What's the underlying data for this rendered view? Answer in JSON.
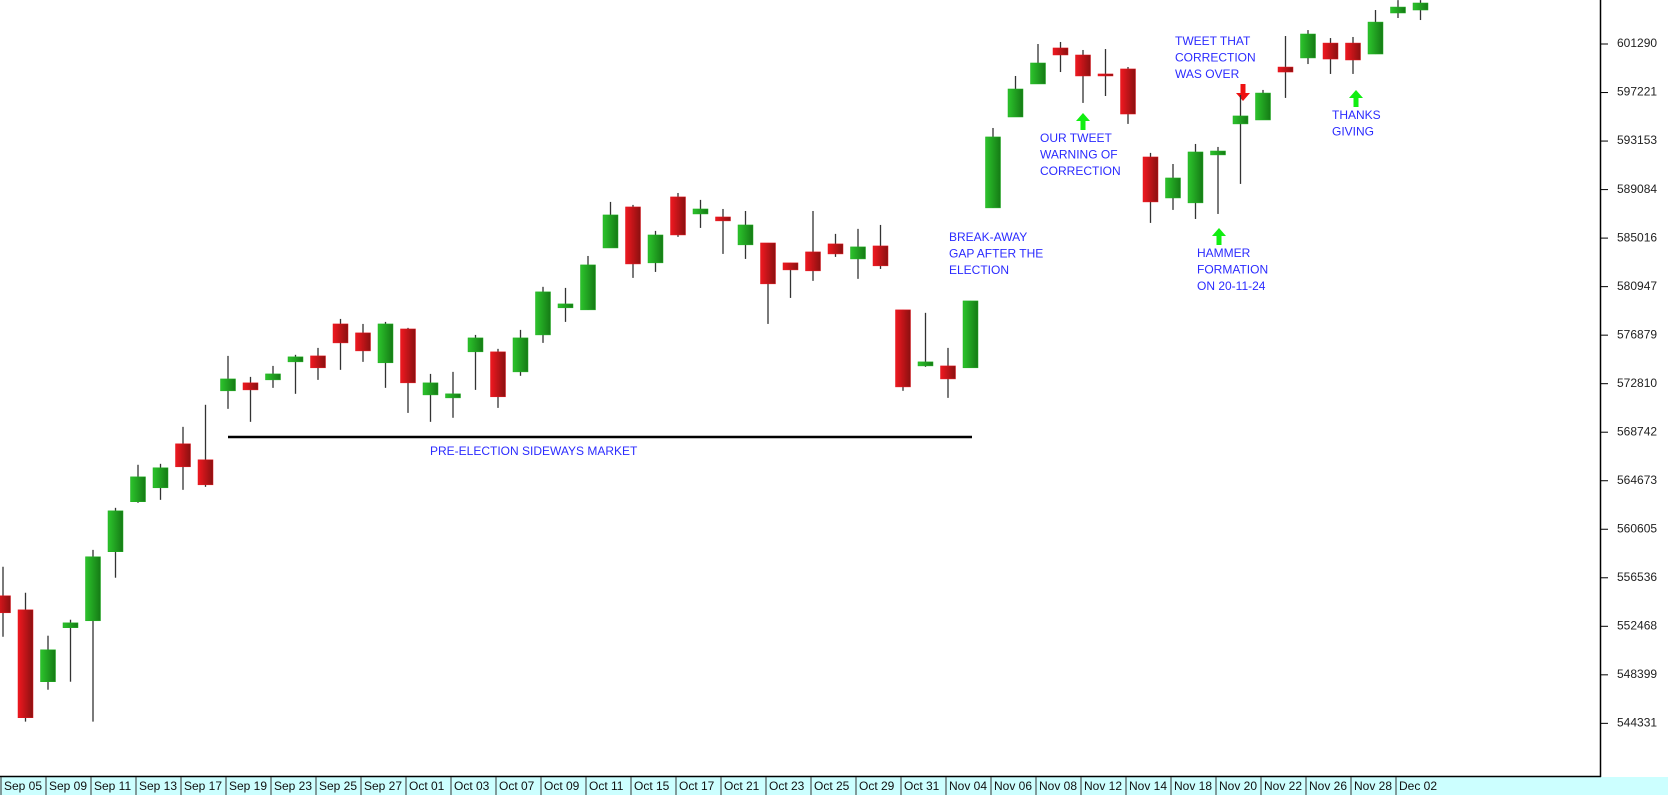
{
  "chart_data": {
    "type": "candlestick",
    "up_color": "#1fae1f",
    "down_color": "#e0141c",
    "wick_color": "#333333",
    "categories": [
      "Sep 05",
      null,
      "Sep 09",
      null,
      "Sep 11",
      null,
      "Sep 13",
      null,
      "Sep 17",
      null,
      "Sep 19",
      null,
      "Sep 23",
      null,
      "Sep 25",
      null,
      "Sep 27",
      null,
      "Oct 01",
      null,
      "Oct 03",
      null,
      "Oct 07",
      null,
      "Oct 09",
      null,
      "Oct 11",
      null,
      "Oct 15",
      null,
      "Oct 17",
      null,
      "Oct 21",
      null,
      "Oct 23",
      null,
      "Oct 25",
      null,
      "Oct 29",
      null,
      "Oct 31",
      null,
      "Nov 04",
      null,
      "Nov 06",
      null,
      "Nov 08",
      null,
      "Nov 12",
      null,
      "Nov 14",
      null,
      "Nov 18",
      null,
      "Nov 20",
      null,
      "Nov 22",
      null,
      "Nov 26",
      null,
      "Nov 28",
      null,
      "Dec 02",
      null
    ],
    "open": [
      555030,
      553850,
      547820,
      552350,
      552930,
      558720,
      562910,
      564080,
      567770,
      566430,
      572210,
      572880,
      573130,
      574640,
      575140,
      577820,
      577070,
      574560,
      577400,
      571870,
      571620,
      575480,
      575480,
      573800,
      576900,
      579170,
      579000,
      584190,
      587630,
      582940,
      588470,
      587040,
      586790,
      584450,
      584610,
      582940,
      583860,
      584530,
      583270,
      584360,
      579000,
      574300,
      574300,
      574140,
      587550,
      595170,
      597940,
      600960,
      600370,
      598780,
      599200,
      591820,
      588380,
      587970,
      591990,
      594590,
      594920,
      599360,
      600120,
      601370,
      601370,
      600450,
      603890,
      604140
    ],
    "high": [
      557460,
      555280,
      551680,
      553020,
      558880,
      562400,
      566010,
      566090,
      569190,
      571040,
      575140,
      573380,
      574300,
      575230,
      575810,
      578240,
      577820,
      577990,
      577490,
      573630,
      573800,
      576900,
      575730,
      577320,
      580930,
      580840,
      583520,
      588050,
      587800,
      585620,
      588800,
      588220,
      587460,
      587290,
      584610,
      582940,
      587290,
      585370,
      585790,
      586120,
      579000,
      578750,
      575810,
      579750,
      594250,
      598610,
      601290,
      601460,
      600790,
      600870,
      599360,
      592160,
      591230,
      592910,
      592660,
      597020,
      597440,
      601960,
      602460,
      601790,
      601880,
      604140,
      604970,
      604970
    ],
    "low": [
      551590,
      544470,
      547150,
      547820,
      544470,
      556540,
      562820,
      563070,
      563910,
      564160,
      570700,
      569610,
      572460,
      571960,
      573130,
      573970,
      574640,
      572460,
      570360,
      569610,
      569950,
      572290,
      570780,
      573470,
      576230,
      577990,
      579000,
      584190,
      581680,
      582180,
      585120,
      585870,
      583690,
      583270,
      577820,
      580000,
      581430,
      583440,
      581600,
      582430,
      572210,
      574220,
      571620,
      574140,
      587550,
      595170,
      597940,
      598940,
      596350,
      596930,
      594590,
      586290,
      587380,
      586620,
      587040,
      589560,
      594920,
      596770,
      599610,
      598780,
      598780,
      600450,
      603470,
      603300
    ],
    "close": [
      553600,
      544800,
      550500,
      552760,
      558300,
      562150,
      565000,
      565760,
      565840,
      564330,
      573210,
      572290,
      573630,
      575060,
      574140,
      576230,
      575560,
      577820,
      572880,
      572880,
      571960,
      576650,
      571710,
      576650,
      580510,
      579500,
      582770,
      586960,
      582850,
      585280,
      585280,
      587460,
      586460,
      586120,
      581180,
      582350,
      582270,
      583690,
      584280,
      582690,
      572540,
      574640,
      573210,
      579750,
      593500,
      597520,
      599700,
      600370,
      598610,
      598610,
      595420,
      588050,
      590060,
      592240,
      592320,
      595260,
      597180,
      598940,
      602130,
      600030,
      599950,
      603130,
      604390,
      604730
    ],
    "ylim": [
      540000,
      604980
    ],
    "yticks": [
      601290,
      597221,
      593153,
      589084,
      585016,
      580947,
      576879,
      572810,
      568742,
      564673,
      560605,
      556536,
      552468,
      548399,
      544331
    ],
    "annotations": [
      {
        "lines": [
          "PRE-ELECTION SIDEWAYS MARKET"
        ]
      },
      {
        "lines": [
          "BREAK-AWAY",
          "GAP AFTER THE",
          "ELECTION"
        ]
      },
      {
        "lines": [
          "OUR TWEET",
          "WARNING OF",
          "CORRECTION"
        ]
      },
      {
        "lines": [
          "TWEET THAT",
          "CORRECTION",
          "WAS OVER"
        ]
      },
      {
        "lines": [
          "HAMMER",
          "FORMATION",
          "ON 20-11-24"
        ]
      },
      {
        "lines": [
          "THANKS",
          "GIVING"
        ]
      }
    ]
  }
}
